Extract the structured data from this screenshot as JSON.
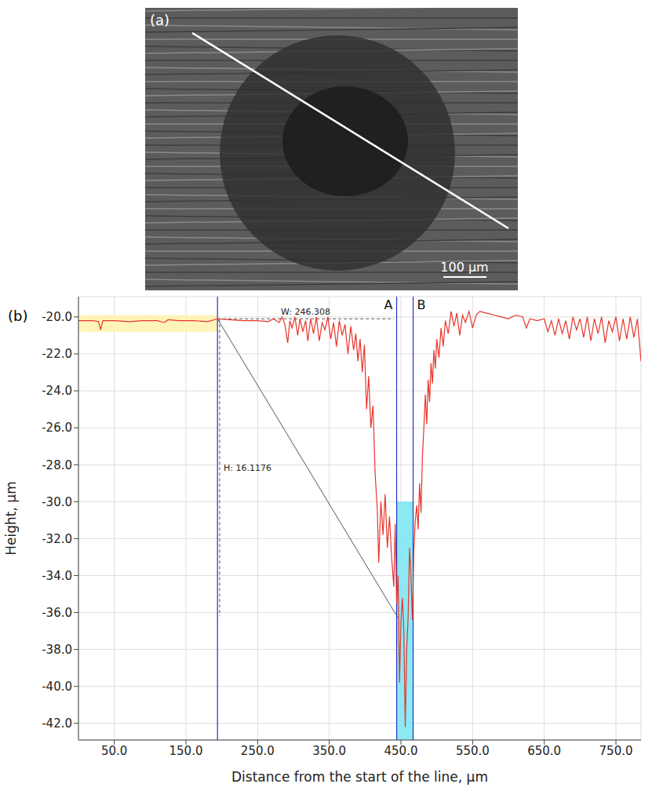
{
  "image_panel": {
    "label": "(a)",
    "scale_bar": "100 µm"
  },
  "chart_data": {
    "type": "line",
    "label": "(b)",
    "x_label": "Distance from the start of the line, µm",
    "y_label": "Height, µm",
    "color": "#e8352b",
    "grid": true,
    "xlim": [
      0,
      785
    ],
    "xticks": [
      {
        "value": 50,
        "label": "50.0"
      },
      {
        "value": 150,
        "label": "150.0"
      },
      {
        "value": 250,
        "label": "250.0"
      },
      {
        "value": 350,
        "label": "350.0"
      },
      {
        "value": 450,
        "label": "450.0"
      },
      {
        "value": 550,
        "label": "550.0"
      },
      {
        "value": 650,
        "label": "650.0"
      },
      {
        "value": 750,
        "label": "750.0"
      }
    ],
    "ylim": [
      -42.9,
      -18.9
    ],
    "yticks": [
      {
        "value": -20,
        "label": "-20.0"
      },
      {
        "value": -22,
        "label": "-22.0"
      },
      {
        "value": -24,
        "label": "-24.0"
      },
      {
        "value": -26,
        "label": "-26.0"
      },
      {
        "value": -28,
        "label": "-28.0"
      },
      {
        "value": -30,
        "label": "-30.0"
      },
      {
        "value": -32,
        "label": "-32.0"
      },
      {
        "value": -34,
        "label": "-34.0"
      },
      {
        "value": -36,
        "label": "-36.0"
      },
      {
        "value": -38,
        "label": "-38.0"
      },
      {
        "value": -40,
        "label": "-40.0"
      },
      {
        "value": -42,
        "label": "-42.0"
      }
    ],
    "x": [
      0,
      10,
      20,
      28,
      31,
      34,
      50,
      70,
      90,
      110,
      120,
      125,
      140,
      160,
      180,
      194,
      210,
      230,
      250,
      265,
      272,
      280,
      284,
      288,
      292,
      295,
      298,
      302,
      306,
      309,
      313,
      317,
      320,
      324,
      328,
      332,
      336,
      340,
      344,
      348,
      352,
      356,
      360,
      364,
      368,
      372,
      376,
      380,
      384,
      387,
      390,
      393,
      396,
      399,
      402,
      405,
      408,
      411,
      414,
      417,
      419,
      422,
      425,
      428,
      431,
      434,
      437,
      440,
      442,
      444,
      446,
      448,
      450,
      452,
      454,
      456,
      458,
      460,
      462,
      464,
      466,
      468,
      470,
      472,
      474,
      476,
      478,
      480,
      482,
      484,
      486,
      488,
      490,
      492,
      494,
      496,
      498,
      500,
      503,
      506,
      509,
      512,
      516,
      520,
      524,
      528,
      532,
      536,
      540,
      545,
      550,
      555,
      560,
      570,
      580,
      590,
      600,
      610,
      620,
      625,
      630,
      640,
      650,
      655,
      660,
      665,
      670,
      675,
      680,
      685,
      690,
      695,
      700,
      705,
      710,
      715,
      720,
      725,
      730,
      735,
      740,
      745,
      750,
      755,
      760,
      765,
      770,
      775,
      780,
      785
    ],
    "values": [
      -20.2,
      -20.2,
      -20.2,
      -20.25,
      -20.7,
      -20.2,
      -20.2,
      -20.25,
      -20.2,
      -20.2,
      -20.3,
      -20.15,
      -20.2,
      -20.2,
      -20.25,
      -20.1,
      -20.15,
      -20.2,
      -20.2,
      -20.25,
      -20.1,
      -20.3,
      -20.0,
      -20.4,
      -21.4,
      -20.2,
      -20.6,
      -20.0,
      -21.0,
      -20.1,
      -20.8,
      -20.2,
      -21.3,
      -20.1,
      -20.9,
      -20.0,
      -21.3,
      -20.3,
      -20.7,
      -20.0,
      -21.2,
      -20.3,
      -21.6,
      -20.2,
      -21.0,
      -20.4,
      -22.0,
      -20.5,
      -21.8,
      -20.9,
      -22.4,
      -21.2,
      -23.0,
      -21.5,
      -25.0,
      -23.2,
      -26.0,
      -24.8,
      -28.5,
      -30.4,
      -33.3,
      -30.0,
      -31.8,
      -29.6,
      -32.5,
      -30.8,
      -33.0,
      -34.6,
      -31.2,
      -35.5,
      -34.0,
      -39.8,
      -36.5,
      -35.2,
      -37.0,
      -42.2,
      -38.0,
      -36.3,
      -32.5,
      -34.0,
      -36.4,
      -32.6,
      -31.0,
      -30.2,
      -31.5,
      -29.0,
      -30.6,
      -27.5,
      -26.0,
      -24.2,
      -25.8,
      -23.4,
      -24.6,
      -22.5,
      -23.6,
      -21.8,
      -22.8,
      -21.2,
      -22.2,
      -20.6,
      -21.6,
      -20.2,
      -20.9,
      -19.7,
      -20.5,
      -19.8,
      -21.0,
      -19.9,
      -20.3,
      -19.7,
      -20.6,
      -19.9,
      -19.7,
      -19.8,
      -19.9,
      -20.0,
      -20.1,
      -19.9,
      -20.0,
      -20.6,
      -20.1,
      -20.2,
      -20.1,
      -20.8,
      -20.2,
      -21.0,
      -20.1,
      -20.9,
      -20.2,
      -21.2,
      -20.0,
      -20.7,
      -20.1,
      -21.1,
      -20.0,
      -21.3,
      -20.1,
      -20.9,
      -20.0,
      -21.4,
      -20.2,
      -20.8,
      -20.0,
      -21.3,
      -20.1,
      -21.2,
      -20.0,
      -21.1,
      -20.1,
      -22.4
    ],
    "regions": [
      {
        "x": [
          0,
          194
        ],
        "y": [
          -20.8,
          -19.9
        ],
        "color": "#fff3b0"
      },
      {
        "x": [
          444,
          467
        ],
        "y": [
          -42.9,
          -30.0
        ],
        "color": "#80e6f2"
      }
    ],
    "vlines": [
      {
        "x": 194,
        "color": "#2233cc"
      },
      {
        "x": 444,
        "label": "A",
        "color": "#2233cc"
      },
      {
        "x": 467,
        "label": "B",
        "color": "#2233cc"
      }
    ],
    "segments": [
      {
        "from": [
          194,
          -20.1
        ],
        "to": [
          440,
          -20.1
        ],
        "label": "W: 246.308",
        "line_style": "dashed",
        "color": "#555555"
      },
      {
        "from": [
          197,
          -20.1
        ],
        "to": [
          197,
          -36.2
        ],
        "label": "H: 16.1176",
        "line_style": "dashed",
        "color": "#555555"
      },
      {
        "from": [
          194,
          -20.1
        ],
        "to": [
          446,
          -36.3
        ],
        "line_style": "solid",
        "color": "#555555"
      }
    ]
  }
}
